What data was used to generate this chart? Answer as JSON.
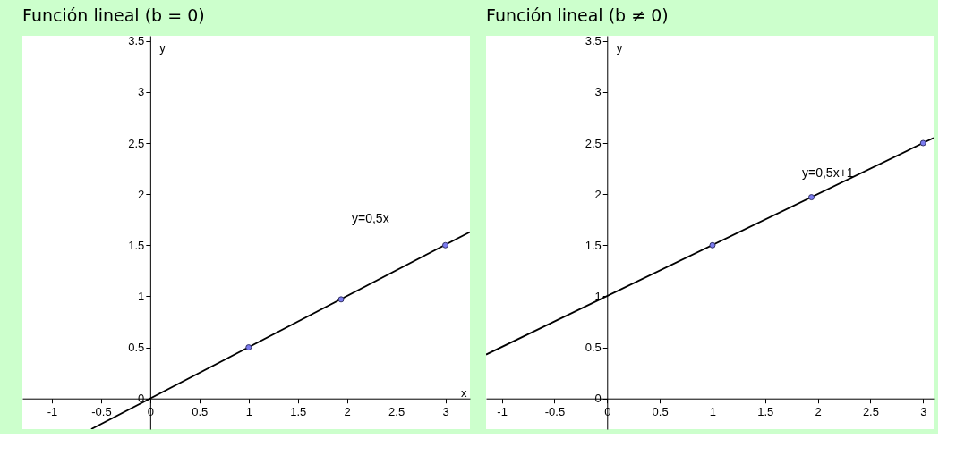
{
  "chart_data": [
    {
      "type": "line",
      "title": "Función lineal (b = 0)",
      "xlabel": "x",
      "ylabel": "y",
      "xlim": [
        -1.3,
        3.25
      ],
      "ylim": [
        -0.3,
        3.55
      ],
      "xticks": [
        -1,
        -0.5,
        0,
        0.5,
        1,
        1.5,
        2,
        2.5,
        3
      ],
      "yticks": [
        0,
        0.5,
        1,
        1.5,
        2,
        2.5,
        3,
        3.5
      ],
      "grid": false,
      "series": [
        {
          "type": "line",
          "color": "#000000",
          "x": [
            -0.6,
            3.25
          ],
          "values": [
            -0.3,
            1.63
          ]
        },
        {
          "type": "scatter",
          "color": "#7b7bf0",
          "marker": "circle",
          "x": [
            1,
            1.94,
            3
          ],
          "values": [
            0.5,
            0.97,
            1.5
          ]
        }
      ],
      "annotations": [
        "y=0,5x"
      ]
    },
    {
      "type": "line",
      "title": "Función lineal (b ≠ 0)",
      "xlabel": null,
      "ylabel": "y",
      "xlim": [
        -1.15,
        3.1
      ],
      "ylim": [
        -0.3,
        3.55
      ],
      "xticks": [
        -1,
        -0.5,
        0,
        0.5,
        1,
        1.5,
        2,
        2.5,
        3
      ],
      "yticks": [
        0,
        0.5,
        1,
        1.5,
        2,
        2.5,
        3,
        3.5
      ],
      "grid": false,
      "series": [
        {
          "type": "line",
          "color": "#000000",
          "x": [
            -1.15,
            3.1
          ],
          "values": [
            0.43,
            2.55
          ]
        },
        {
          "type": "scatter",
          "color": "#7b7bf0",
          "marker": "circle",
          "x": [
            1,
            1.94,
            3
          ],
          "values": [
            1.5,
            1.97,
            2.5
          ]
        }
      ],
      "annotations": [
        "y=0,5x+1"
      ]
    }
  ]
}
